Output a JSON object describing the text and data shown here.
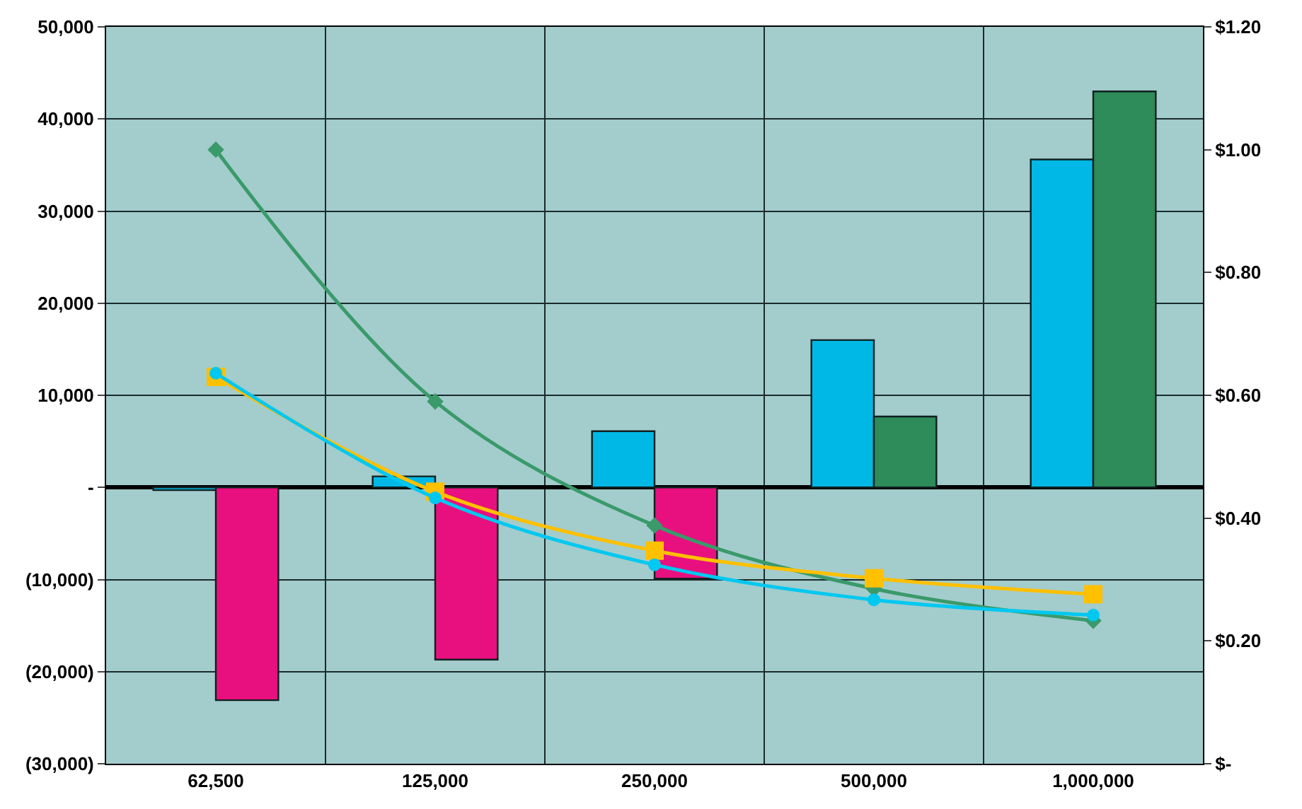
{
  "chart_data": {
    "type": "bar",
    "categories": [
      "62,500",
      "125,000",
      "250,000",
      "500,000",
      "1,000,000"
    ],
    "series": [
      {
        "color": "#00b8e6",
        "values": [
          -300,
          1200,
          6100,
          16000,
          35600
        ]
      },
      {
        "colors": [
          "#e8107f",
          "#e8107f",
          "#e8107f",
          "#2e8b5a",
          "#2e8b5a"
        ],
        "values": [
          -23100,
          -18700,
          -9900,
          7700,
          43000
        ]
      },
      {
        "type": "line",
        "axis": "y2",
        "color": "#3a9a6a",
        "marker": "diamond",
        "values": [
          1.0,
          0.59,
          0.388,
          0.285,
          0.233
        ]
      },
      {
        "type": "line",
        "axis": "y2",
        "color": "#ffc000",
        "marker": "square",
        "values": [
          0.63,
          0.443,
          0.347,
          0.302,
          0.276
        ]
      },
      {
        "type": "line",
        "axis": "y2",
        "color": "#00c8f0",
        "marker": "circle",
        "values": [
          0.636,
          0.433,
          0.324,
          0.267,
          0.242
        ]
      }
    ],
    "ylim": [
      -30000,
      50000
    ],
    "yticks": [
      {
        "value": -30000,
        "label": "(30,000)"
      },
      {
        "value": -20000,
        "label": "(20,000)"
      },
      {
        "value": -10000,
        "label": "(10,000)"
      },
      {
        "value": 0,
        "label": "-"
      },
      {
        "value": 10000,
        "label": "10,000"
      },
      {
        "value": 20000,
        "label": "20,000"
      },
      {
        "value": 30000,
        "label": "30,000"
      },
      {
        "value": 40000,
        "label": "40,000"
      },
      {
        "value": 50000,
        "label": "50,000"
      }
    ],
    "y2lim": [
      0,
      1.2
    ],
    "y2ticks": [
      {
        "value": 0,
        "label": "$-"
      },
      {
        "value": 0.2,
        "label": "$0.20"
      },
      {
        "value": 0.4,
        "label": "$0.40"
      },
      {
        "value": 0.6,
        "label": "$0.60"
      },
      {
        "value": 0.8,
        "label": "$0.80"
      },
      {
        "value": 1.0,
        "label": "$1.00"
      },
      {
        "value": 1.2,
        "label": "$1.20"
      }
    ],
    "grid": true,
    "line_style": "solid"
  }
}
